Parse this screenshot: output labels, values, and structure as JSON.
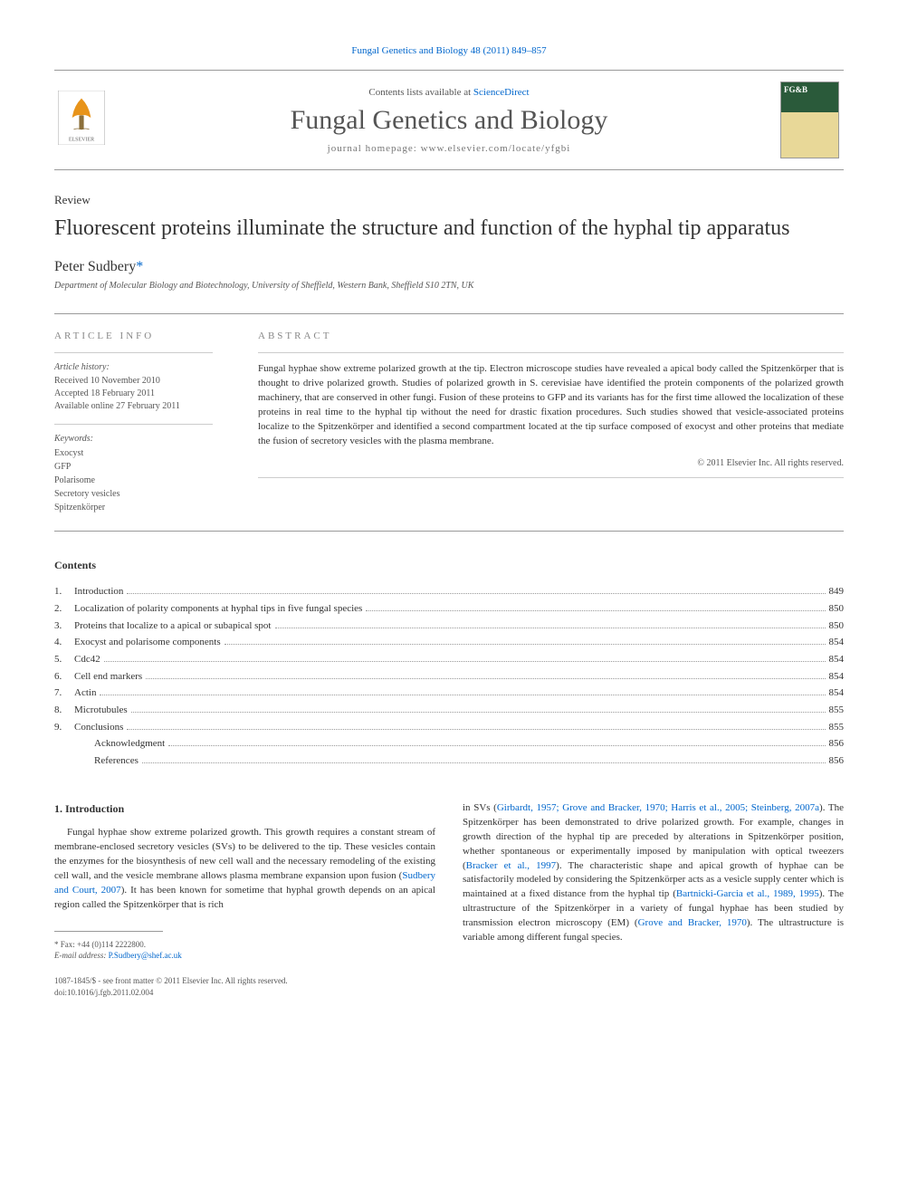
{
  "header": {
    "citation": "Fungal Genetics and Biology 48 (2011) 849–857",
    "contents_prefix": "Contents lists available at ",
    "contents_link": "ScienceDirect",
    "journal_title": "Fungal Genetics and Biology",
    "homepage": "journal homepage: www.elsevier.com/locate/yfgbi",
    "cover_label": "FG&B"
  },
  "article": {
    "type": "Review",
    "title": "Fluorescent proteins illuminate the structure and function of the hyphal tip apparatus",
    "author": "Peter Sudbery",
    "author_mark": "*",
    "affiliation": "Department of Molecular Biology and Biotechnology, University of Sheffield, Western Bank, Sheffield S10 2TN, UK"
  },
  "info": {
    "heading": "ARTICLE INFO",
    "history_label": "Article history:",
    "history": "Received 10 November 2010\nAccepted 18 February 2011\nAvailable online 27 February 2011",
    "keywords_label": "Keywords:",
    "keywords": "Exocyst\nGFP\nPolarisome\nSecretory vesicles\nSpitzenkörper"
  },
  "abstract": {
    "heading": "ABSTRACT",
    "text": "Fungal hyphae show extreme polarized growth at the tip. Electron microscope studies have revealed a apical body called the Spitzenkörper that is thought to drive polarized growth. Studies of polarized growth in S. cerevisiae have identified the protein components of the polarized growth machinery, that are conserved in other fungi. Fusion of these proteins to GFP and its variants has for the first time allowed the localization of these proteins in real time to the hyphal tip without the need for drastic fixation procedures. Such studies showed that vesicle-associated proteins localize to the Spitzenkörper and identified a second compartment located at the tip surface composed of exocyst and other proteins that mediate the fusion of secretory vesicles with the plasma membrane.",
    "copyright": "© 2011 Elsevier Inc. All rights reserved."
  },
  "contents": {
    "heading": "Contents",
    "items": [
      {
        "num": "1.",
        "label": "Introduction",
        "page": "849"
      },
      {
        "num": "2.",
        "label": "Localization of polarity components at hyphal tips in five fungal species",
        "page": "850"
      },
      {
        "num": "3.",
        "label": "Proteins that localize to a apical or subapical spot",
        "page": "850"
      },
      {
        "num": "4.",
        "label": "Exocyst and polarisome components",
        "page": "854"
      },
      {
        "num": "5.",
        "label": "Cdc42",
        "page": "854"
      },
      {
        "num": "6.",
        "label": "Cell end markers",
        "page": "854"
      },
      {
        "num": "7.",
        "label": "Actin",
        "page": "854"
      },
      {
        "num": "8.",
        "label": "Microtubules",
        "page": "855"
      },
      {
        "num": "9.",
        "label": "Conclusions",
        "page": "855"
      },
      {
        "num": "",
        "label": "Acknowledgment",
        "page": "856",
        "indent": true
      },
      {
        "num": "",
        "label": "References",
        "page": "856",
        "indent": true
      }
    ]
  },
  "body": {
    "section1_heading": "1. Introduction",
    "col1_p1a": "Fungal hyphae show extreme polarized growth. This growth requires a constant stream of membrane-enclosed secretory vesicles (SVs) to be delivered to the tip. These vesicles contain the enzymes for the biosynthesis of new cell wall and the necessary remodeling of the existing cell wall, and the vesicle membrane allows plasma membrane expansion upon fusion (",
    "col1_ref1": "Sudbery and Court, 2007",
    "col1_p1b": "). It has been known for sometime that hyphal growth depends on an apical region called the Spitzenkörper that is rich",
    "col2_p1a": "in SVs (",
    "col2_ref1": "Girbardt, 1957; Grove and Bracker, 1970; Harris et al., 2005; Steinberg, 2007a",
    "col2_p1b": "). The Spitzenkörper has been demonstrated to drive polarized growth. For example, changes in growth direction of the hyphal tip are preceded by alterations in Spitzenkörper position, whether spontaneous or experimentally imposed by manipulation with optical tweezers (",
    "col2_ref2": "Bracker et al., 1997",
    "col2_p1c": "). The characteristic shape and apical growth of hyphae can be satisfactorily modeled by considering the Spitzenkörper acts as a vesicle supply center which is maintained at a fixed distance from the hyphal tip (",
    "col2_ref3": "Bartnicki-Garcia et al., 1989, 1995",
    "col2_p1d": "). The ultrastructure of the Spitzenkörper in a variety of fungal hyphae has been studied by transmission electron microscopy (EM) (",
    "col2_ref4": "Grove and Bracker, 1970",
    "col2_p1e": "). The ultrastructure is variable among different fungal species."
  },
  "footer": {
    "fax": "* Fax: +44 (0)114 2222800.",
    "email_label": "E-mail address: ",
    "email": "P.Sudbery@shef.ac.uk",
    "issn": "1087-1845/$ - see front matter © 2011 Elsevier Inc. All rights reserved.",
    "doi": "doi:10.1016/j.fgb.2011.02.004"
  },
  "colors": {
    "link": "#0066cc",
    "text": "#333333",
    "muted": "#555555",
    "border": "#999999"
  }
}
